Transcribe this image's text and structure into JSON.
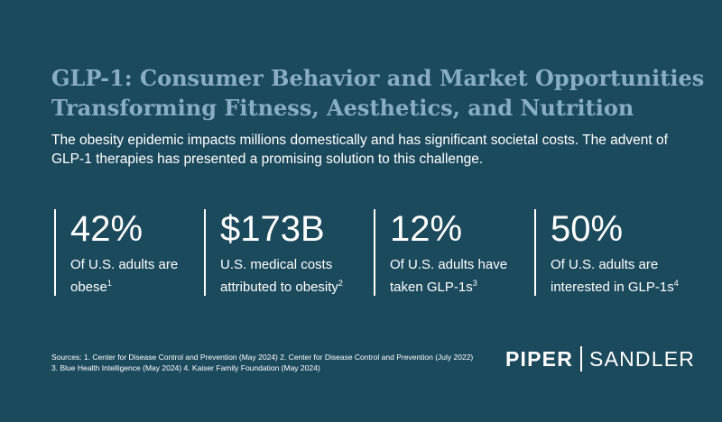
{
  "header": {
    "title_line1": "GLP-1: Consumer Behavior and Market Opportunities",
    "title_line2": "Transforming Fitness, Aesthetics, and Nutrition",
    "intro": "The obesity epidemic impacts millions domestically and has significant societal costs. The advent of GLP-1 therapies has presented a promising solution to this challenge."
  },
  "stats": [
    {
      "value": "42%",
      "label": "Of U.S. adults are obese",
      "ref": "1"
    },
    {
      "value": "$173B",
      "label": "U.S. medical costs attributed to obesity",
      "ref": "2"
    },
    {
      "value": "12%",
      "label": "Of U.S. adults have taken GLP-1s",
      "ref": "3"
    },
    {
      "value": "50%",
      "label": "Of U.S. adults are interested in GLP-1s",
      "ref": "4"
    }
  ],
  "sources": {
    "line1": "Sources: 1. Center for Disease Control and Prevention (May 2024) 2. Center for Disease Control and Prevention (July 2022)",
    "line2": "3. Blue Health Intelligence (May 2024) 4. Kaiser Family Foundation (May 2024)"
  },
  "logo": {
    "part1": "PIPER",
    "part2": "SANDLER"
  },
  "colors": {
    "background": "#1c4a5d",
    "title": "#89adc4",
    "text": "#ffffff"
  }
}
